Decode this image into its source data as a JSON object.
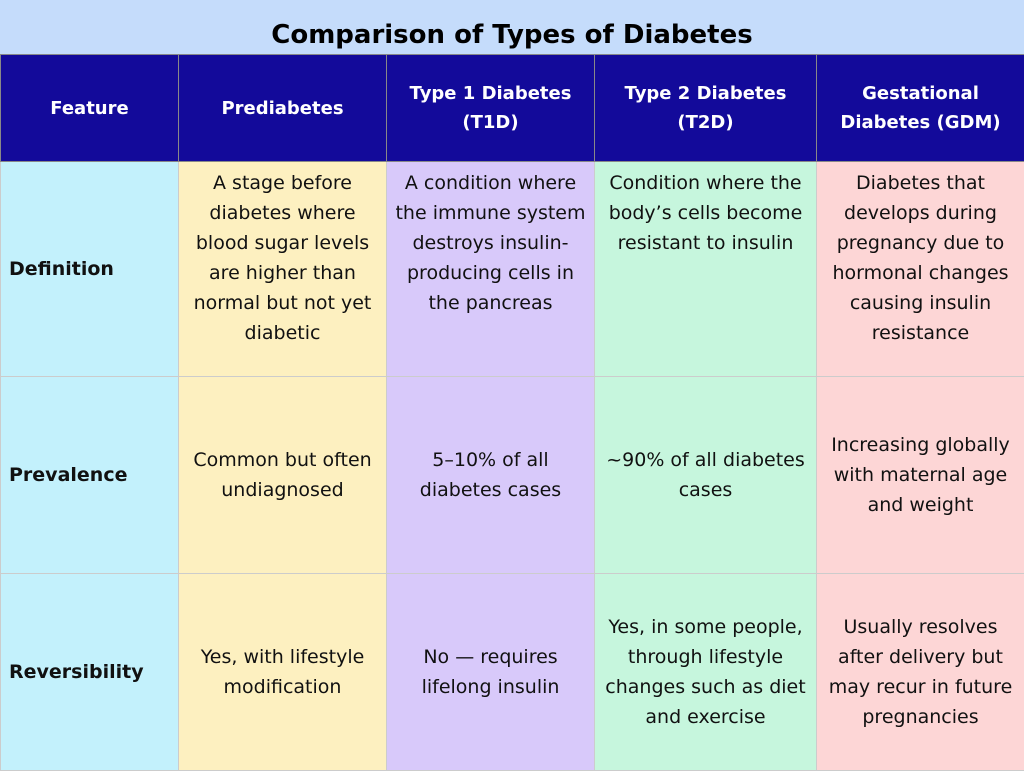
{
  "title": "Comparison of Types of Diabetes",
  "table": {
    "header": [
      "Feature",
      "Prediabetes",
      "Type 1 Diabetes (T1D)",
      "Type 2 Diabetes (T2D)",
      "Gestational Diabetes (GDM)"
    ],
    "rows": [
      [
        "Definition",
        "A stage before diabetes where blood sugar levels are higher than normal but not yet diabetic",
        "A condition where the immune system destroys insulin-producing cells in the pancreas",
        "Condition where the body’s cells become resistant to insulin",
        "Diabetes that develops during pregnancy due to hormonal changes causing insulin resistance"
      ],
      [
        "Prevalence",
        "Common but often undiagnosed",
        "5–10% of all diabetes cases",
        "~90% of all diabetes cases",
        "Increasing globally with maternal age and weight"
      ],
      [
        "Reversibility",
        "Yes, with lifestyle modification",
        "No — requires lifelong insulin",
        "Yes, in some people, through lifestyle changes such as diet and exercise",
        "Usually resolves after delivery but may recur in future pregnancies"
      ]
    ]
  }
}
